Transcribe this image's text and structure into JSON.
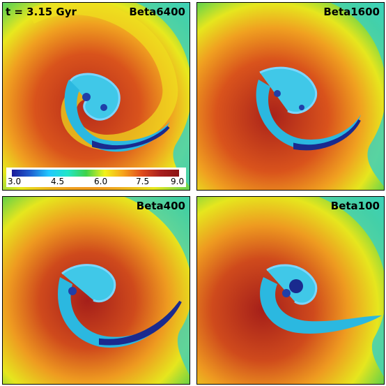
{
  "time_label": "t = 3.15 Gyr",
  "panels": [
    {
      "label": "Beta6400"
    },
    {
      "label": "Beta1600"
    },
    {
      "label": "Beta400"
    },
    {
      "label": "Beta100"
    }
  ],
  "colorbar": {
    "ticks": [
      "3.0",
      "4.5",
      "6.0",
      "7.5",
      "9.0"
    ]
  }
}
